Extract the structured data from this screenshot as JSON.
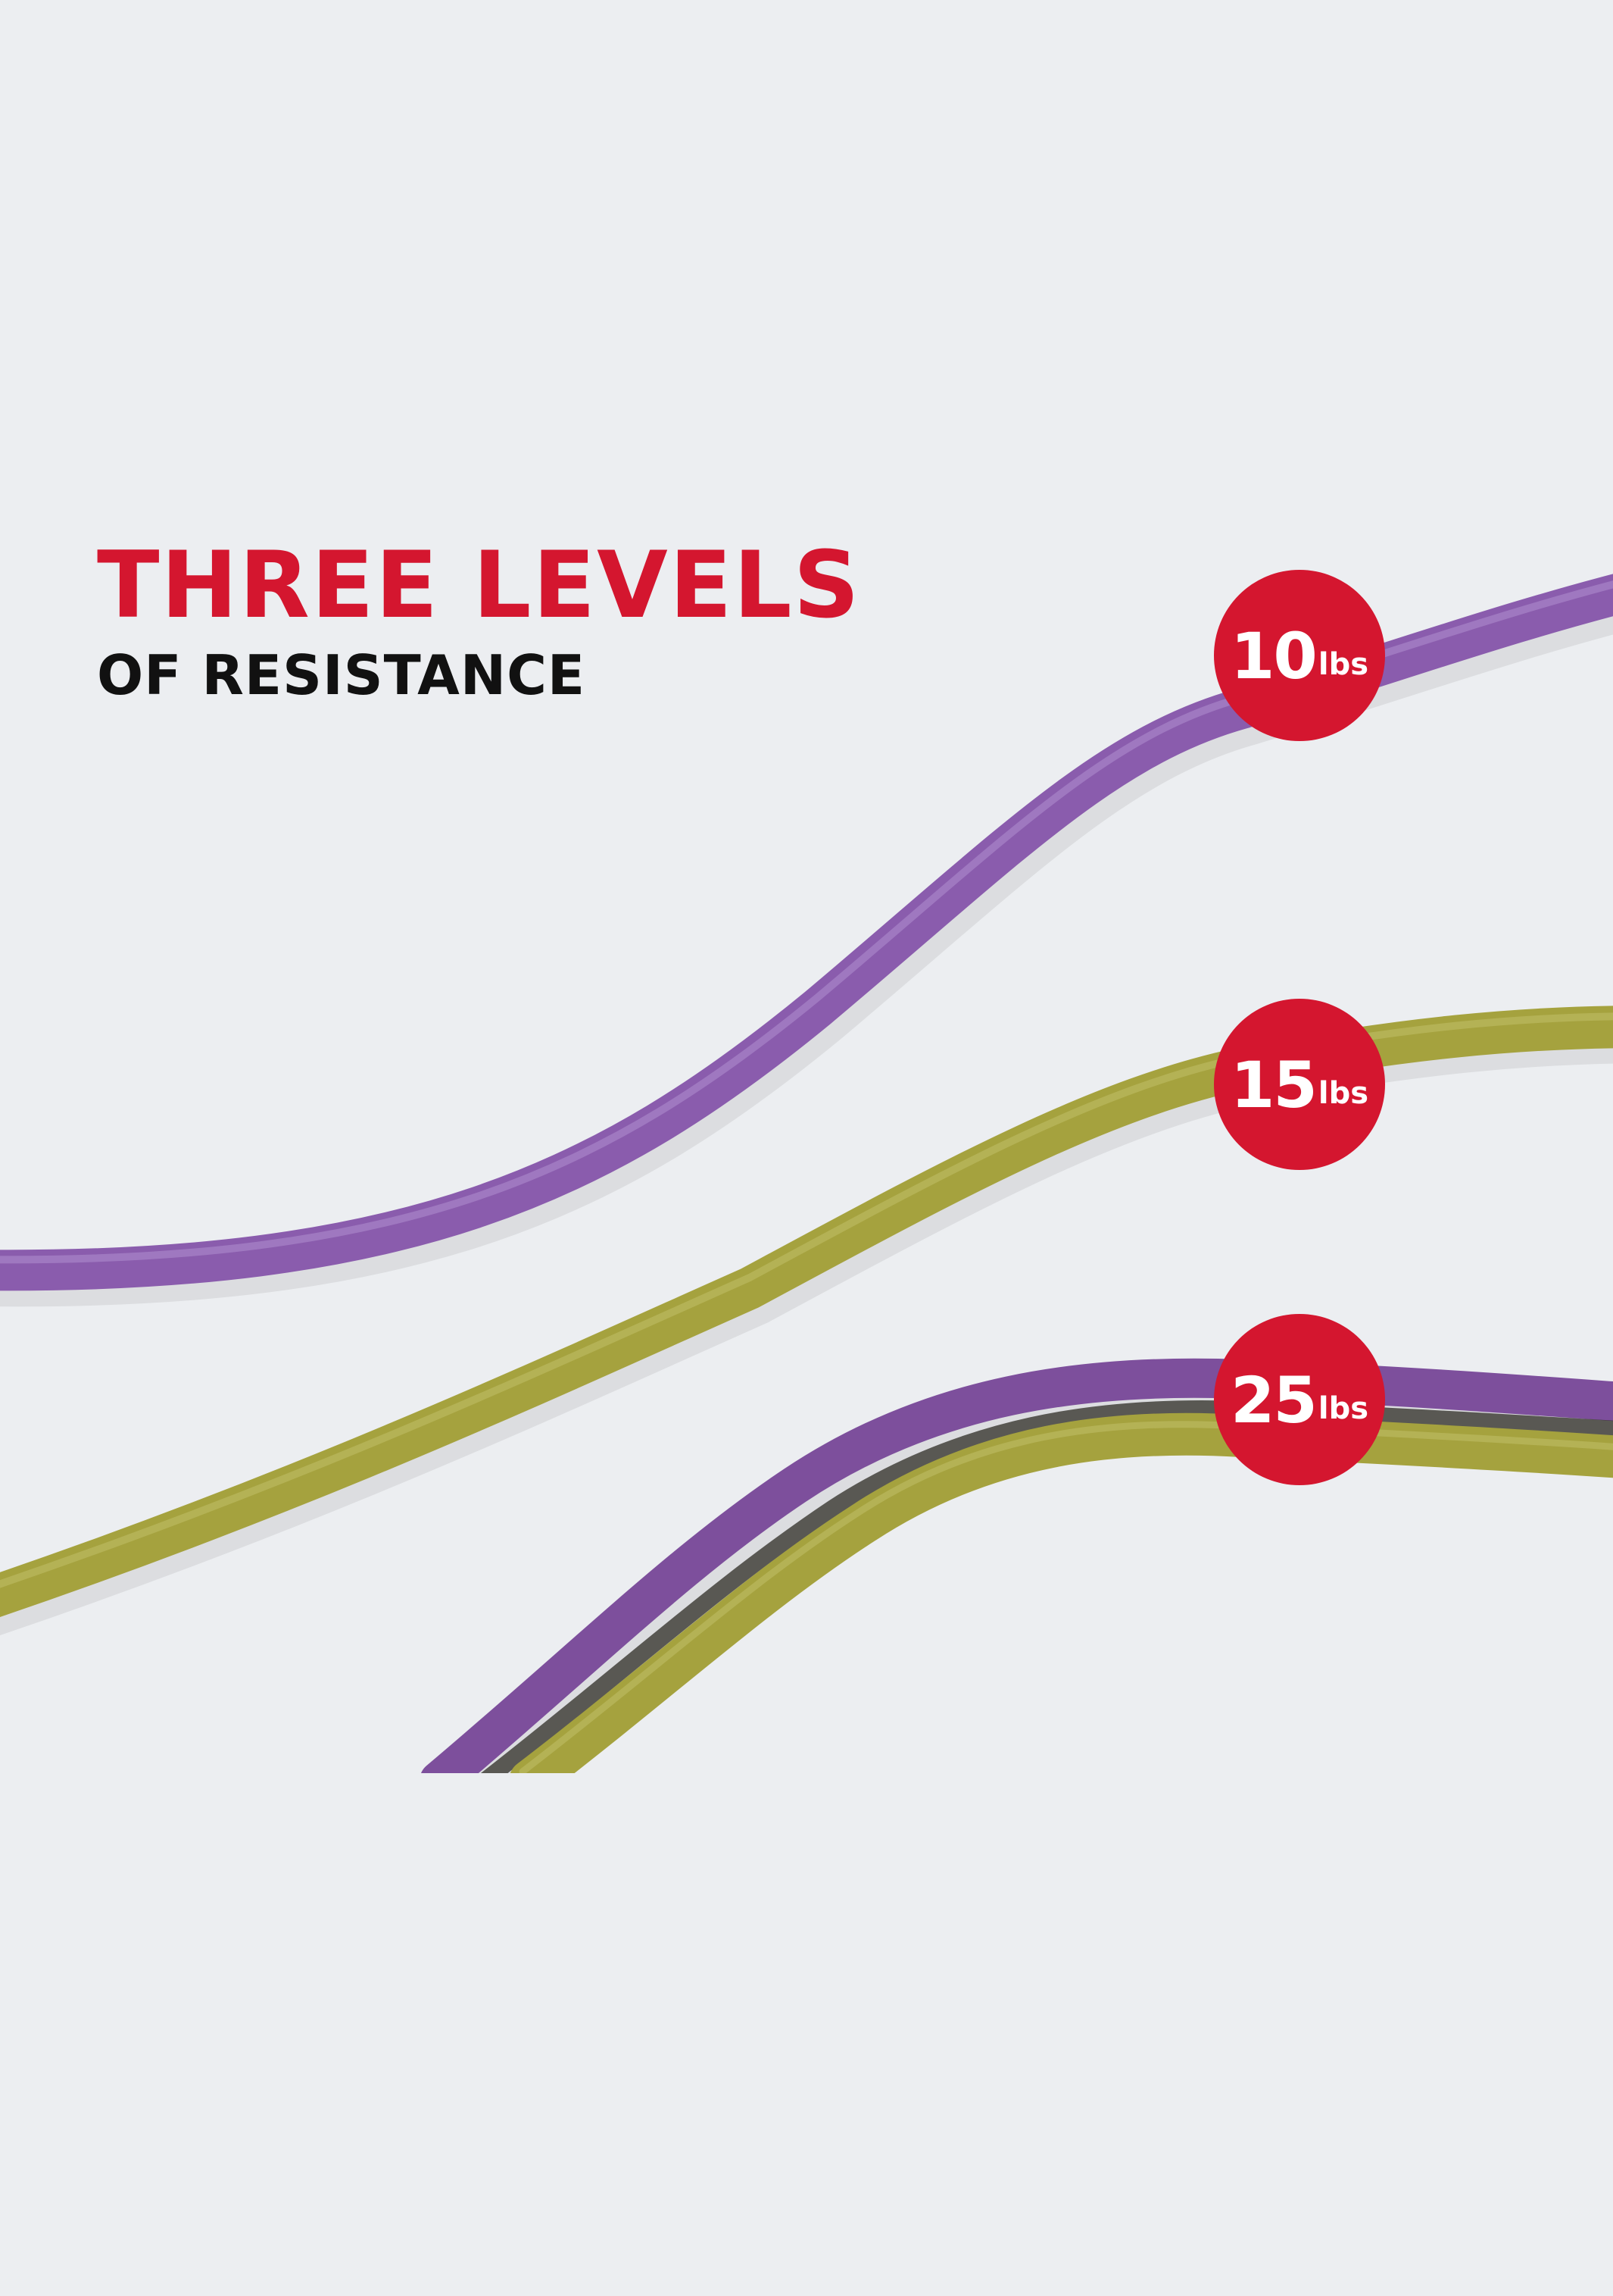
{
  "headline": {
    "title": "THREE LEVELS",
    "subtitle": "OF RESISTANCE"
  },
  "levels": [
    {
      "value": "10",
      "unit": "lbs",
      "bands": [
        "purple"
      ]
    },
    {
      "value": "15",
      "unit": "lbs",
      "bands": [
        "green"
      ]
    },
    {
      "value": "25",
      "unit": "lbs",
      "bands": [
        "purple",
        "green"
      ]
    }
  ],
  "colors": {
    "background": "#eceef1",
    "accent_red": "#d4162f",
    "heading_black": "#111111",
    "band_purple": "#8a5cad",
    "band_green": "#a5a23e",
    "badge_text": "#ffffff"
  }
}
